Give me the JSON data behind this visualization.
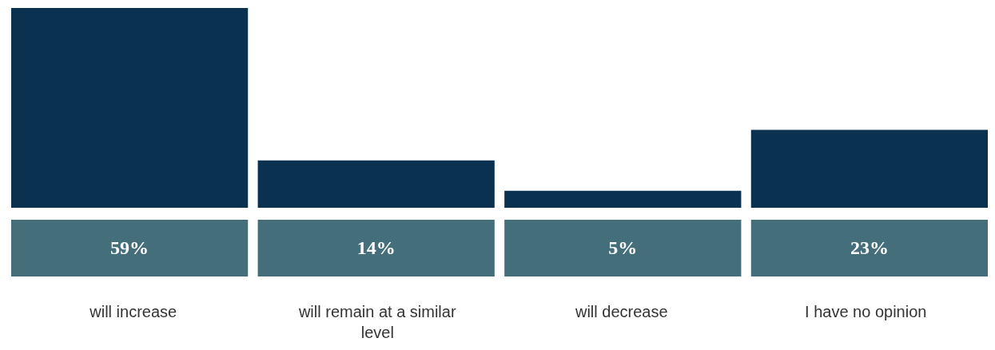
{
  "chart_data": {
    "type": "bar",
    "categories": [
      "will increase",
      "will remain at a similar level",
      "will decrease",
      "I have no opinion"
    ],
    "values": [
      59,
      14,
      5,
      23
    ],
    "color": "#0a3150",
    "data_labels": true,
    "value_labels": [
      "59%",
      "14%",
      "5%",
      "23%"
    ]
  }
}
